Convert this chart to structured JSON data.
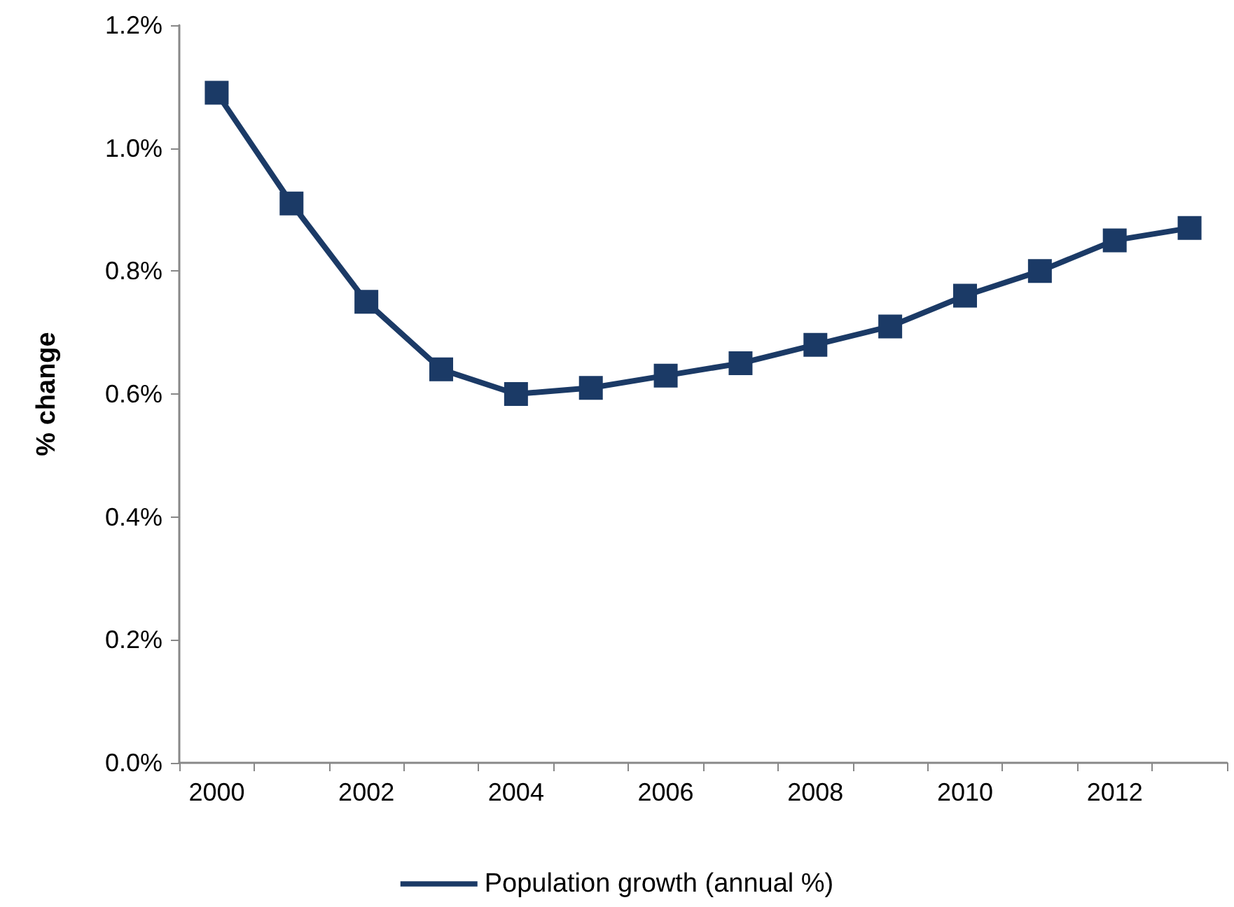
{
  "chart_data": {
    "type": "line",
    "ylabel": "% change",
    "categories": [
      "2000",
      null,
      "2002",
      null,
      "2004",
      null,
      "2006",
      null,
      "2008",
      null,
      "2010",
      null,
      "2012",
      null
    ],
    "series": [
      {
        "name": "Population growth (annual %)",
        "color": "#1b3a66",
        "values": [
          1.09,
          0.91,
          0.75,
          0.64,
          0.6,
          0.61,
          0.63,
          0.65,
          0.68,
          0.71,
          0.76,
          0.8,
          0.85,
          0.87
        ]
      }
    ],
    "ylim": [
      0,
      1.2
    ],
    "yticks": [
      {
        "value": 0,
        "label": "0.0%"
      },
      {
        "value": 0.2,
        "label": "0.2%"
      },
      {
        "value": 0.4,
        "label": "0.4%"
      },
      {
        "value": 0.6,
        "label": "0.6%"
      },
      {
        "value": 0.8,
        "label": "0.8%"
      },
      {
        "value": 1.0,
        "label": "1.0%"
      },
      {
        "value": 1.2,
        "label": "1.2%"
      }
    ],
    "grid": false,
    "legend": "bottom",
    "marker": "square",
    "line_style": "solid"
  }
}
